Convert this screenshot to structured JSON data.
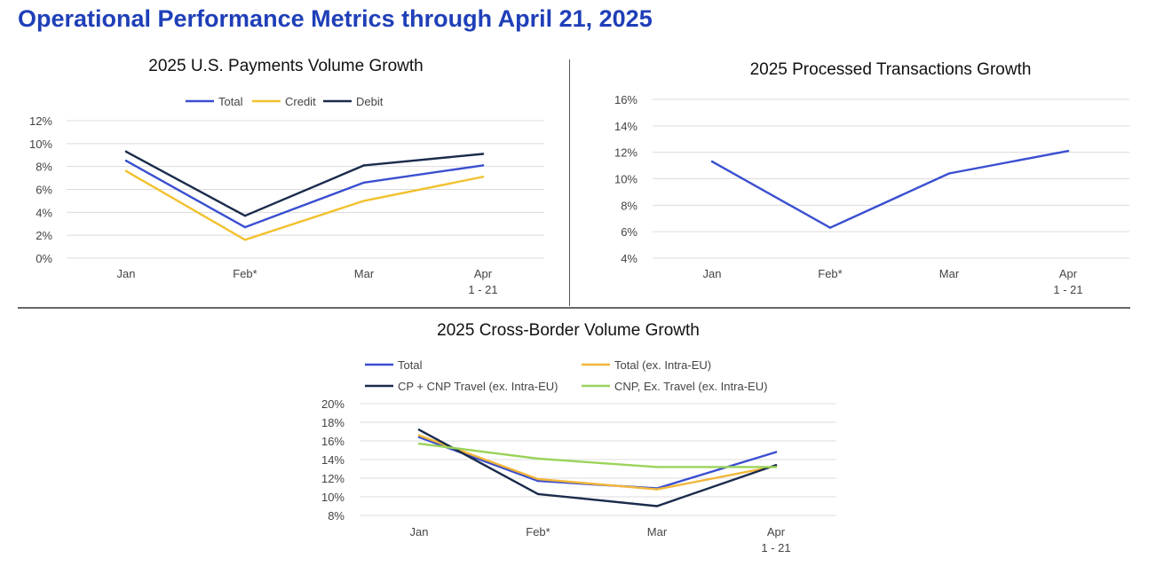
{
  "page": {
    "title": "Operational Performance Metrics through April 21, 2025"
  },
  "chart_data": [
    {
      "id": "payments",
      "type": "line",
      "title": "2025 U.S. Payments Volume Growth",
      "categories": [
        "Jan",
        "Feb*",
        "Mar",
        "Apr\n1 - 21"
      ],
      "ylim": [
        0,
        12
      ],
      "yticks": [
        0,
        2,
        4,
        6,
        8,
        10,
        12
      ],
      "tick_suffix": "%",
      "legend": "top",
      "series": [
        {
          "name": "Total",
          "color": "#3a4fd0",
          "values": [
            8.5,
            2.7,
            6.6,
            8.1
          ]
        },
        {
          "name": "Credit",
          "color": "#f2c12e",
          "values": [
            7.6,
            1.6,
            5.0,
            7.1
          ]
        },
        {
          "name": "Debit",
          "color": "#1a2b4c",
          "values": [
            9.3,
            3.7,
            8.1,
            9.1
          ]
        }
      ]
    },
    {
      "id": "transactions",
      "type": "line",
      "title": "2025 Processed Transactions Growth",
      "categories": [
        "Jan",
        "Feb*",
        "Mar",
        "Apr\n1 - 21"
      ],
      "ylim": [
        4,
        16
      ],
      "yticks": [
        4,
        6,
        8,
        10,
        12,
        14,
        16
      ],
      "tick_suffix": "%",
      "legend": "none",
      "series": [
        {
          "name": "Processed Transactions",
          "color": "#3a4fd0",
          "values": [
            11.3,
            6.3,
            10.4,
            12.1
          ]
        }
      ]
    },
    {
      "id": "crossborder",
      "type": "line",
      "title": "2025 Cross-Border Volume Growth",
      "categories": [
        "Jan",
        "Feb*",
        "Mar",
        "Apr\n1 - 21"
      ],
      "ylim": [
        8,
        20
      ],
      "yticks": [
        8,
        10,
        12,
        14,
        16,
        18,
        20
      ],
      "tick_suffix": "%",
      "legend": "top",
      "series": [
        {
          "name": "Total",
          "color": "#3a4fd0",
          "values": [
            16.4,
            11.7,
            10.9,
            14.8
          ]
        },
        {
          "name": "Total (ex. Intra-EU)",
          "color": "#f2b73a",
          "values": [
            16.6,
            11.9,
            10.8,
            13.3
          ]
        },
        {
          "name": "CP + CNP Travel (ex. Intra-EU)",
          "color": "#1a2b4c",
          "values": [
            17.2,
            10.3,
            9.0,
            13.4
          ]
        },
        {
          "name": "CNP, Ex. Travel (ex. Intra-EU)",
          "color": "#9bd35a",
          "values": [
            15.7,
            14.1,
            13.2,
            13.2
          ]
        }
      ]
    }
  ]
}
